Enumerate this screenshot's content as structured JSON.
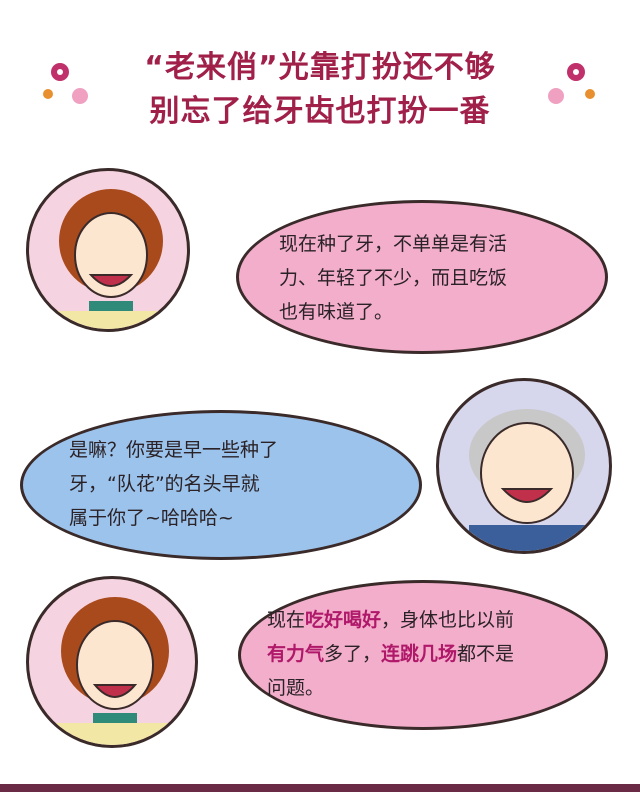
{
  "header": {
    "title_line1": "“老来俏”光靠打扮还不够",
    "title_line2": "别忘了给牙齿也打扮一番"
  },
  "dialog1": {
    "line1": "现在种了牙，不单单是有活",
    "line2": "力、年轻了不少，而且吃饭",
    "line3": "也有味道了。"
  },
  "dialog2": {
    "line1": "是嘛？你要是早一些种了",
    "line2": "牙，“队花”的名头早就",
    "line3": "属于你了~哈哈哈~"
  },
  "dialog3": {
    "l1_a": "现在",
    "l1_b": "吃好喝好",
    "l1_c": "，身体也比以前",
    "l2_a": "有力气",
    "l2_b": "多了，",
    "l2_c": "连跳几场",
    "l2_d": "都不是",
    "line3": "问题。"
  },
  "colors": {
    "title": "#a0204a",
    "pink_bubble": "#f2aecb",
    "blue_bubble": "#9cc3ec",
    "highlight": "#b0186a"
  },
  "icons": [
    "flower-icon",
    "woman-avatar",
    "man-avatar"
  ]
}
